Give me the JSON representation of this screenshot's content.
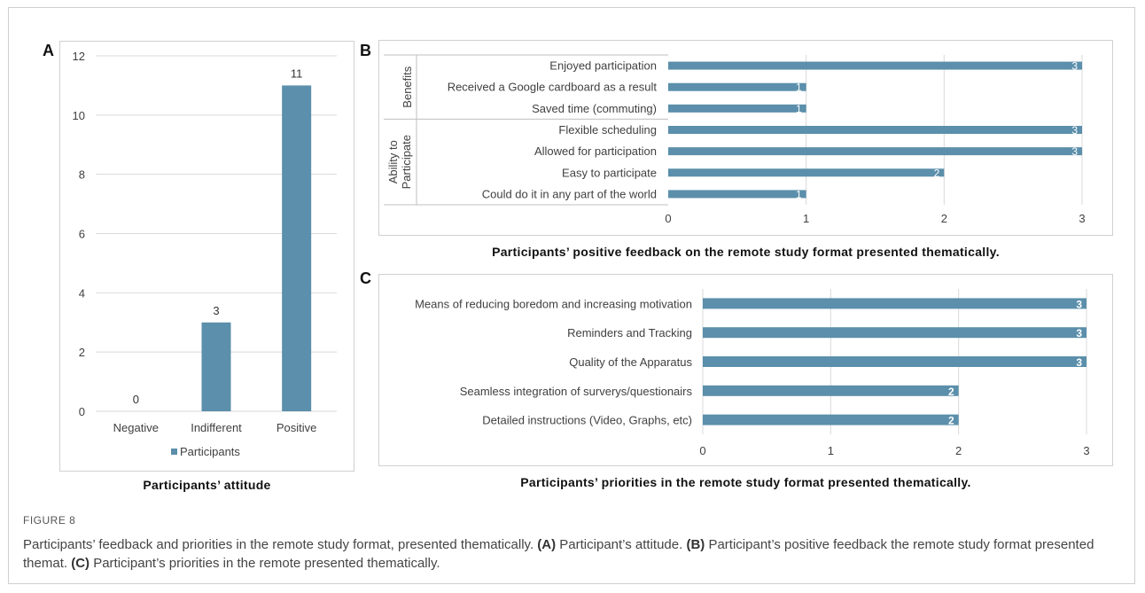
{
  "figure_label": "FIGURE 8",
  "caption": {
    "text": "Participants’ feedback and priorities in the remote study format, presented thematically.",
    "a_label": "(A)",
    "a_text": "Participant’s attitude.",
    "b_label": "(B)",
    "b_text": "Participant’s positive feedback the remote study format presented themat.",
    "c_label": "(C)",
    "c_text": "Participant’s priorities in the remote presented thematically."
  },
  "panels": {
    "a": {
      "letter": "A"
    },
    "b": {
      "letter": "B"
    },
    "c": {
      "letter": "C"
    }
  },
  "colors": {
    "bar": "#5b8fab",
    "grid": "#d9d9d9",
    "text": "#404040"
  },
  "chart_data": [
    {
      "id": "A",
      "type": "bar",
      "title": "Participants’ attitude",
      "categories": [
        "Negative",
        "Indifferent",
        "Positive"
      ],
      "series": [
        {
          "name": "Participants",
          "values": [
            0,
            3,
            11
          ]
        }
      ],
      "data_labels": [
        "0",
        "3",
        "11"
      ],
      "ylim": [
        0,
        12
      ],
      "yticks": [
        0,
        2,
        4,
        6,
        8,
        10,
        12
      ],
      "grid": true,
      "legend": "bottom"
    },
    {
      "id": "B",
      "type": "bar",
      "orientation": "horizontal",
      "title": "Participants’ positive feedback on the remote study format presented thematically.",
      "groups": [
        {
          "name": "Benefits",
          "items": [
            {
              "label": "Enjoyed participation",
              "value": 3
            },
            {
              "label": "Received a Google cardboard as a result",
              "value": 1
            },
            {
              "label": "Saved time (commuting)",
              "value": 1
            }
          ]
        },
        {
          "name": "Ability to Participate",
          "items": [
            {
              "label": "Flexible scheduling",
              "value": 3
            },
            {
              "label": "Allowed for participation",
              "value": 3
            },
            {
              "label": "Easy to participate",
              "value": 2
            },
            {
              "label": "Could do it in any part of the world",
              "value": 1
            }
          ]
        }
      ],
      "xlim": [
        0,
        3
      ],
      "xticks": [
        0,
        1,
        2,
        3
      ],
      "grid": true
    },
    {
      "id": "C",
      "type": "bar",
      "orientation": "horizontal",
      "title": "Participants’ priorities in the remote study format presented thematically.",
      "categories": [
        "Means of reducing boredom and increasing motivation",
        "Reminders and Tracking",
        "Quality of the Apparatus",
        "Seamless integration of surverys/questionairs",
        "Detailed instructions (Video, Graphs, etc)"
      ],
      "values": [
        3,
        3,
        3,
        2,
        2
      ],
      "xlim": [
        0,
        3
      ],
      "xticks": [
        0,
        1,
        2,
        3
      ],
      "grid": true
    }
  ]
}
